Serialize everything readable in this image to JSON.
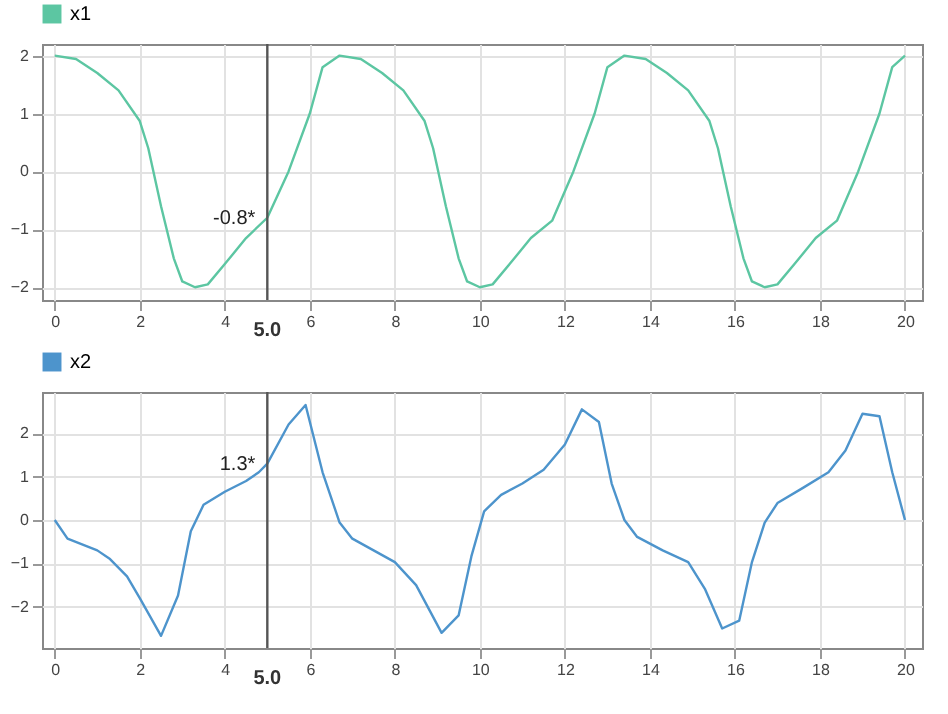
{
  "chart_data": [
    {
      "type": "line",
      "x": [
        0,
        0.5,
        1,
        1.5,
        2,
        2.2,
        2.5,
        2.8,
        3.0,
        3.3,
        3.6,
        4,
        4.5,
        5,
        5.5,
        6,
        6.3,
        6.7,
        7.2,
        7.7,
        8.2,
        8.7,
        8.9,
        9.2,
        9.5,
        9.7,
        10,
        10.3,
        10.7,
        11.2,
        11.7,
        12.2,
        12.7,
        13,
        13.4,
        13.9,
        14.4,
        14.9,
        15.4,
        15.6,
        15.9,
        16.2,
        16.4,
        16.7,
        17,
        17.4,
        17.9,
        18.4,
        18.9,
        19.4,
        19.7,
        20
      ],
      "series": [
        {
          "name": "x1",
          "color": "#5cc6a2",
          "values": [
            2,
            1.94,
            1.7,
            1.4,
            0.87,
            0.4,
            -0.6,
            -1.5,
            -1.9,
            -2,
            -1.95,
            -1.6,
            -1.15,
            -0.8,
            0,
            1,
            1.8,
            2,
            1.94,
            1.7,
            1.4,
            0.87,
            0.4,
            -0.6,
            -1.5,
            -1.9,
            -2,
            -1.95,
            -1.6,
            -1.15,
            -0.85,
            0,
            1,
            1.8,
            2,
            1.94,
            1.7,
            1.4,
            0.87,
            0.4,
            -0.6,
            -1.5,
            -1.9,
            -2,
            -1.95,
            -1.6,
            -1.15,
            -0.85,
            0,
            1,
            1.8,
            2
          ]
        }
      ],
      "xlim": [
        -0.3,
        20.4
      ],
      "ylim": [
        -2.22,
        2.2
      ],
      "xticks": [
        0,
        2,
        4,
        6,
        8,
        10,
        12,
        14,
        16,
        18,
        20
      ],
      "yticks": [
        -2,
        -1,
        0,
        1,
        2
      ],
      "grid": true,
      "legend": "top left",
      "annotations": [
        {
          "text": "-0.8*",
          "x": 5,
          "y": -0.8
        }
      ],
      "ref_lines": [
        {
          "axis": "x",
          "value": 5,
          "label": "5.0"
        }
      ]
    },
    {
      "type": "line",
      "x": [
        0,
        0.3,
        1,
        1.3,
        1.7,
        2,
        2.5,
        2.9,
        3.2,
        3.5,
        4,
        4.5,
        4.8,
        5,
        5.5,
        5.9,
        6.3,
        6.7,
        7,
        7.5,
        8,
        8.5,
        9.1,
        9.5,
        9.8,
        10.1,
        10.5,
        11,
        11.5,
        12,
        12.4,
        12.8,
        13.1,
        13.4,
        13.7,
        14.3,
        14.9,
        15.3,
        15.7,
        16.1,
        16.4,
        16.7,
        17,
        17.6,
        18.2,
        18.6,
        19,
        19.4,
        19.7,
        20
      ],
      "series": [
        {
          "name": "x2",
          "color": "#4d94cc",
          "values": [
            0,
            -0.43,
            -0.7,
            -0.9,
            -1.3,
            -1.8,
            -2.67,
            -1.74,
            -0.26,
            0.35,
            0.65,
            0.9,
            1.1,
            1.3,
            2.2,
            2.65,
            1.1,
            -0.06,
            -0.43,
            -0.7,
            -0.97,
            -1.5,
            -2.6,
            -2.2,
            -0.84,
            0.2,
            0.58,
            0.84,
            1.16,
            1.74,
            2.55,
            2.26,
            0.84,
            0,
            -0.39,
            -0.7,
            -0.97,
            -1.6,
            -2.5,
            -2.32,
            -0.97,
            -0.06,
            0.39,
            0.74,
            1.1,
            1.6,
            2.45,
            2.39,
            1.1,
            0
          ]
        }
      ],
      "xlim": [
        -0.3,
        20.4
      ],
      "ylim": [
        -2.95,
        2.95
      ],
      "xticks": [
        0,
        2,
        4,
        6,
        8,
        10,
        12,
        14,
        16,
        18,
        20
      ],
      "yticks": [
        -2,
        -1,
        0,
        1,
        2
      ],
      "grid": true,
      "legend": "top left",
      "annotations": [
        {
          "text": "1.3*",
          "x": 5,
          "y": 1.3
        }
      ],
      "ref_lines": [
        {
          "axis": "x",
          "value": 5,
          "label": "5.0"
        }
      ]
    }
  ]
}
